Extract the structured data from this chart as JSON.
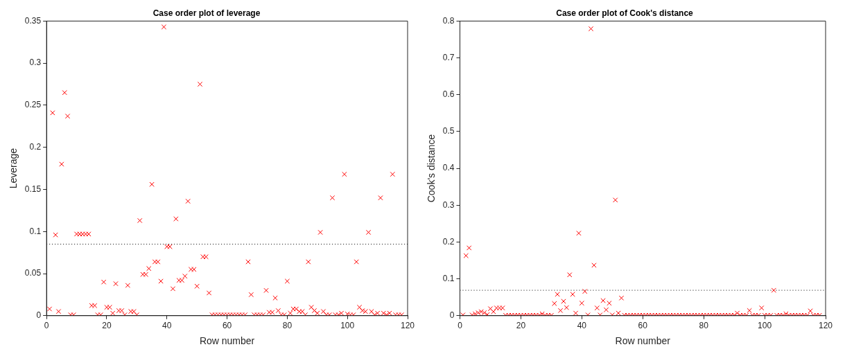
{
  "chart_data": [
    {
      "type": "scatter",
      "title": "Case order plot of leverage",
      "xlabel": "Row number",
      "ylabel": "Leverage",
      "x": [
        1,
        2,
        3,
        4,
        5,
        6,
        7,
        8,
        9,
        10,
        11,
        12,
        13,
        14,
        15,
        16,
        17,
        18,
        19,
        20,
        21,
        22,
        23,
        24,
        25,
        26,
        27,
        28,
        29,
        30,
        31,
        32,
        33,
        34,
        35,
        36,
        37,
        38,
        39,
        40,
        41,
        42,
        43,
        44,
        45,
        46,
        47,
        48,
        49,
        50,
        51,
        52,
        53,
        54,
        55,
        56,
        57,
        58,
        59,
        60,
        61,
        62,
        63,
        64,
        65,
        66,
        67,
        68,
        69,
        70,
        71,
        72,
        73,
        74,
        75,
        76,
        77,
        78,
        79,
        80,
        81,
        82,
        83,
        84,
        85,
        86,
        87,
        88,
        89,
        90,
        91,
        92,
        93,
        94,
        95,
        96,
        97,
        98,
        99,
        100,
        101,
        102,
        103,
        104,
        105,
        106,
        107,
        108,
        109,
        110,
        111,
        112,
        113,
        114,
        115,
        116,
        117,
        118
      ],
      "series": [
        {
          "color": "#ff0000",
          "values": [
            0.008,
            0.241,
            0.096,
            0.005,
            0.18,
            0.265,
            0.237,
            0.001,
            0.001,
            0.097,
            0.097,
            0.097,
            0.097,
            0.097,
            0.012,
            0.012,
            0.001,
            0.001,
            0.04,
            0.01,
            0.01,
            0.003,
            0.038,
            0.006,
            0.006,
            0.001,
            0.036,
            0.005,
            0.005,
            0.001,
            0.113,
            0.049,
            0.049,
            0.056,
            0.156,
            0.064,
            0.064,
            0.041,
            0.343,
            0.082,
            0.082,
            0.032,
            0.115,
            0.042,
            0.042,
            0.047,
            0.136,
            0.055,
            0.055,
            0.035,
            0.275,
            0.07,
            0.07,
            0.027,
            0.001,
            0.001,
            0.001,
            0.001,
            0.001,
            0.001,
            0.001,
            0.001,
            0.001,
            0.001,
            0.001,
            0.001,
            0.064,
            0.025,
            0.001,
            0.001,
            0.001,
            0.001,
            0.03,
            0.004,
            0.004,
            0.021,
            0.006,
            0.001,
            0.001,
            0.041,
            0.003,
            0.008,
            0.008,
            0.005,
            0.005,
            0.001,
            0.064,
            0.01,
            0.006,
            0.003,
            0.099,
            0.005,
            0.001,
            0.001,
            0.14,
            0.001,
            0.001,
            0.003,
            0.168,
            0.002,
            0.001,
            0.001,
            0.064,
            0.01,
            0.006,
            0.005,
            0.099,
            0.005,
            0.001,
            0.003,
            0.14,
            0.003,
            0.001,
            0.003,
            0.168,
            0.001,
            0.001,
            0.001
          ]
        }
      ],
      "xlim": [
        0,
        120
      ],
      "xticks": [
        0,
        20,
        40,
        60,
        80,
        100,
        120
      ],
      "ylim": [
        0,
        0.35
      ],
      "yticks": [
        0,
        0.05,
        0.1,
        0.15,
        0.2,
        0.25,
        0.3,
        0.35
      ],
      "ref_lines": [
        {
          "axis": "y",
          "value": 0.085,
          "color": "#000000",
          "line_style": "dotted"
        }
      ],
      "marker": "cross",
      "grid": false,
      "legend": false
    },
    {
      "type": "scatter",
      "title": "Case order plot of Cook's distance",
      "xlabel": "Row number",
      "ylabel": "Cook's distance",
      "x": [
        1,
        2,
        3,
        4,
        5,
        6,
        7,
        8,
        9,
        10,
        11,
        12,
        13,
        14,
        15,
        16,
        17,
        18,
        19,
        20,
        21,
        22,
        23,
        24,
        25,
        26,
        27,
        28,
        29,
        30,
        31,
        32,
        33,
        34,
        35,
        36,
        37,
        38,
        39,
        40,
        41,
        42,
        43,
        44,
        45,
        46,
        47,
        48,
        49,
        50,
        51,
        52,
        53,
        54,
        55,
        56,
        57,
        58,
        59,
        60,
        61,
        62,
        63,
        64,
        65,
        66,
        67,
        68,
        69,
        70,
        71,
        72,
        73,
        74,
        75,
        76,
        77,
        78,
        79,
        80,
        81,
        82,
        83,
        84,
        85,
        86,
        87,
        88,
        89,
        90,
        91,
        92,
        93,
        94,
        95,
        96,
        97,
        98,
        99,
        100,
        101,
        102,
        103,
        104,
        105,
        106,
        107,
        108,
        109,
        110,
        111,
        112,
        113,
        114,
        115,
        116,
        117,
        118
      ],
      "series": [
        {
          "color": "#ff0000",
          "values": [
            0.002,
            0.163,
            0.184,
            0.002,
            0.005,
            0.008,
            0.011,
            0.008,
            0.003,
            0.019,
            0.011,
            0.021,
            0.021,
            0.021,
            0.001,
            0.001,
            0.001,
            0.001,
            0.001,
            0.001,
            0.001,
            0.001,
            0.001,
            0.001,
            0.001,
            0.001,
            0.005,
            0.001,
            0.001,
            0.001,
            0.033,
            0.058,
            0.014,
            0.039,
            0.022,
            0.111,
            0.058,
            0.007,
            0.224,
            0.034,
            0.066,
            0.002,
            0.779,
            0.137,
            0.021,
            0.002,
            0.041,
            0.016,
            0.034,
            0.002,
            0.314,
            0.007,
            0.048,
            0.001,
            0.001,
            0.001,
            0.001,
            0.001,
            0.001,
            0.001,
            0.001,
            0.001,
            0.001,
            0.001,
            0.001,
            0.001,
            0.001,
            0.001,
            0.001,
            0.001,
            0.001,
            0.001,
            0.001,
            0.001,
            0.001,
            0.001,
            0.001,
            0.001,
            0.001,
            0.001,
            0.001,
            0.001,
            0.001,
            0.001,
            0.001,
            0.001,
            0.001,
            0.001,
            0.001,
            0.001,
            0.007,
            0.001,
            0.001,
            0.001,
            0.014,
            0.001,
            0.001,
            0.001,
            0.021,
            0.001,
            0.001,
            0.001,
            0.069,
            0.001,
            0.001,
            0.001,
            0.005,
            0.001,
            0.001,
            0.001,
            0.001,
            0.001,
            0.001,
            0.001,
            0.013,
            0.001,
            0.001,
            0.001
          ]
        }
      ],
      "xlim": [
        0,
        120
      ],
      "xticks": [
        0,
        20,
        40,
        60,
        80,
        100,
        120
      ],
      "ylim": [
        0,
        0.8
      ],
      "yticks": [
        0,
        0.1,
        0.2,
        0.3,
        0.4,
        0.5,
        0.6,
        0.7,
        0.8
      ],
      "ref_lines": [
        {
          "axis": "y",
          "value": 0.069,
          "color": "#000000",
          "line_style": "dotted"
        }
      ],
      "marker": "cross",
      "grid": false,
      "legend": false
    }
  ]
}
